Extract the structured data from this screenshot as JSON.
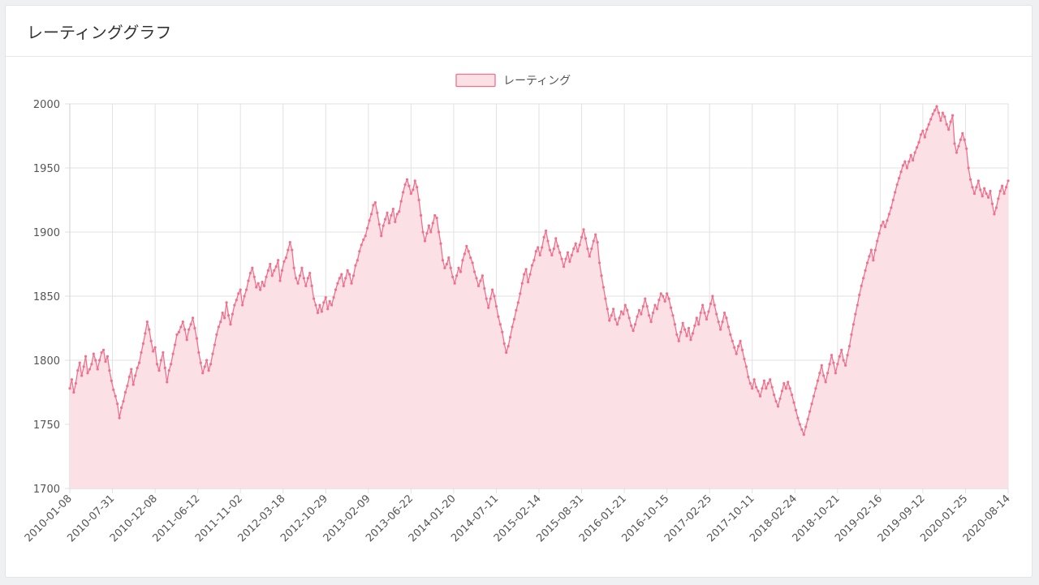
{
  "page": {
    "title": "レーティンググラフ"
  },
  "colors": {
    "line": "#f0718d",
    "fill": "#fbe0e6",
    "grid": "#e2e2e2",
    "axis_text": "#555555"
  },
  "chart_data": {
    "type": "area",
    "title": "",
    "legend": {
      "label": "レーティング",
      "position": "top-center"
    },
    "series": [
      {
        "name": "レーティング"
      }
    ],
    "ylim": [
      1700,
      2000
    ],
    "y_ticks": [
      1700,
      1750,
      1800,
      1850,
      1900,
      1950,
      2000
    ],
    "x_start_date": "2010-01-08",
    "x_tick_labels": [
      "2010-01-08",
      "2010-07-31",
      "2010-12-08",
      "2011-06-12",
      "2011-11-02",
      "2012-03-18",
      "2012-10-29",
      "2013-02-09",
      "2013-06-22",
      "2014-01-20",
      "2014-07-11",
      "2015-02-14",
      "2015-08-31",
      "2016-01-21",
      "2016-10-15",
      "2017-02-25",
      "2017-10-11",
      "2018-02-24",
      "2018-10-21",
      "2019-02-16",
      "2019-09-12",
      "2020-01-25",
      "2020-08-14"
    ],
    "grid": true,
    "point_count": 460,
    "values": [
      1778,
      1785,
      1775,
      1782,
      1792,
      1798,
      1788,
      1795,
      1803,
      1790,
      1793,
      1797,
      1805,
      1800,
      1793,
      1800,
      1806,
      1808,
      1799,
      1803,
      1792,
      1784,
      1777,
      1772,
      1766,
      1755,
      1763,
      1768,
      1775,
      1780,
      1787,
      1793,
      1781,
      1788,
      1794,
      1798,
      1806,
      1813,
      1821,
      1830,
      1824,
      1815,
      1807,
      1810,
      1797,
      1792,
      1800,
      1806,
      1794,
      1783,
      1792,
      1797,
      1805,
      1812,
      1820,
      1822,
      1826,
      1830,
      1824,
      1816,
      1824,
      1828,
      1833,
      1825,
      1817,
      1806,
      1798,
      1790,
      1795,
      1800,
      1792,
      1797,
      1805,
      1812,
      1820,
      1826,
      1830,
      1837,
      1833,
      1845,
      1835,
      1828,
      1836,
      1843,
      1847,
      1852,
      1855,
      1843,
      1850,
      1855,
      1862,
      1868,
      1872,
      1865,
      1857,
      1860,
      1855,
      1861,
      1858,
      1865,
      1870,
      1875,
      1866,
      1870,
      1873,
      1878,
      1862,
      1870,
      1877,
      1880,
      1886,
      1892,
      1886,
      1872,
      1864,
      1860,
      1866,
      1872,
      1864,
      1858,
      1864,
      1868,
      1858,
      1848,
      1843,
      1837,
      1843,
      1838,
      1845,
      1849,
      1840,
      1846,
      1843,
      1849,
      1855,
      1860,
      1864,
      1867,
      1858,
      1864,
      1870,
      1867,
      1860,
      1866,
      1874,
      1878,
      1885,
      1890,
      1894,
      1897,
      1903,
      1909,
      1914,
      1921,
      1923,
      1915,
      1906,
      1897,
      1905,
      1910,
      1915,
      1907,
      1913,
      1918,
      1908,
      1914,
      1916,
      1924,
      1931,
      1937,
      1941,
      1936,
      1930,
      1933,
      1940,
      1935,
      1925,
      1913,
      1900,
      1893,
      1899,
      1905,
      1900,
      1907,
      1913,
      1911,
      1900,
      1891,
      1878,
      1872,
      1875,
      1880,
      1872,
      1865,
      1860,
      1866,
      1872,
      1869,
      1878,
      1883,
      1889,
      1885,
      1880,
      1876,
      1869,
      1864,
      1858,
      1862,
      1866,
      1856,
      1848,
      1841,
      1848,
      1855,
      1850,
      1842,
      1834,
      1828,
      1822,
      1813,
      1806,
      1811,
      1818,
      1826,
      1832,
      1839,
      1845,
      1852,
      1860,
      1867,
      1871,
      1861,
      1867,
      1874,
      1878,
      1885,
      1888,
      1882,
      1888,
      1896,
      1901,
      1893,
      1886,
      1882,
      1887,
      1895,
      1889,
      1884,
      1879,
      1873,
      1879,
      1884,
      1877,
      1882,
      1887,
      1891,
      1885,
      1890,
      1896,
      1902,
      1895,
      1887,
      1881,
      1887,
      1893,
      1898,
      1892,
      1876,
      1866,
      1857,
      1848,
      1840,
      1831,
      1835,
      1840,
      1832,
      1828,
      1833,
      1838,
      1836,
      1843,
      1839,
      1833,
      1827,
      1823,
      1828,
      1834,
      1839,
      1836,
      1842,
      1848,
      1842,
      1835,
      1830,
      1837,
      1843,
      1840,
      1847,
      1852,
      1850,
      1846,
      1852,
      1848,
      1841,
      1835,
      1828,
      1820,
      1815,
      1822,
      1829,
      1824,
      1819,
      1825,
      1816,
      1821,
      1827,
      1833,
      1828,
      1837,
      1843,
      1837,
      1832,
      1838,
      1844,
      1850,
      1843,
      1836,
      1830,
      1824,
      1830,
      1837,
      1833,
      1826,
      1820,
      1815,
      1810,
      1805,
      1811,
      1815,
      1808,
      1801,
      1795,
      1787,
      1782,
      1778,
      1785,
      1779,
      1776,
      1772,
      1778,
      1784,
      1778,
      1782,
      1785,
      1779,
      1773,
      1768,
      1764,
      1770,
      1776,
      1782,
      1778,
      1783,
      1778,
      1773,
      1767,
      1761,
      1755,
      1750,
      1746,
      1742,
      1748,
      1754,
      1760,
      1766,
      1772,
      1778,
      1784,
      1790,
      1796,
      1788,
      1783,
      1790,
      1797,
      1804,
      1798,
      1790,
      1797,
      1803,
      1808,
      1800,
      1796,
      1804,
      1811,
      1820,
      1828,
      1836,
      1843,
      1851,
      1858,
      1864,
      1870,
      1876,
      1881,
      1886,
      1878,
      1886,
      1893,
      1899,
      1905,
      1908,
      1904,
      1909,
      1914,
      1919,
      1925,
      1931,
      1937,
      1942,
      1947,
      1952,
      1955,
      1950,
      1955,
      1960,
      1956,
      1962,
      1966,
      1970,
      1976,
      1979,
      1974,
      1980,
      1984,
      1988,
      1992,
      1995,
      1998,
      1993,
      1987,
      1993,
      1990,
      1984,
      1980,
      1986,
      1991,
      1969,
      1962,
      1967,
      1972,
      1977,
      1972,
      1965,
      1950,
      1941,
      1935,
      1930,
      1935,
      1940,
      1933,
      1928,
      1934,
      1930,
      1927,
      1932,
      1922,
      1914,
      1919,
      1926,
      1932,
      1936,
      1930,
      1935,
      1940
    ]
  }
}
